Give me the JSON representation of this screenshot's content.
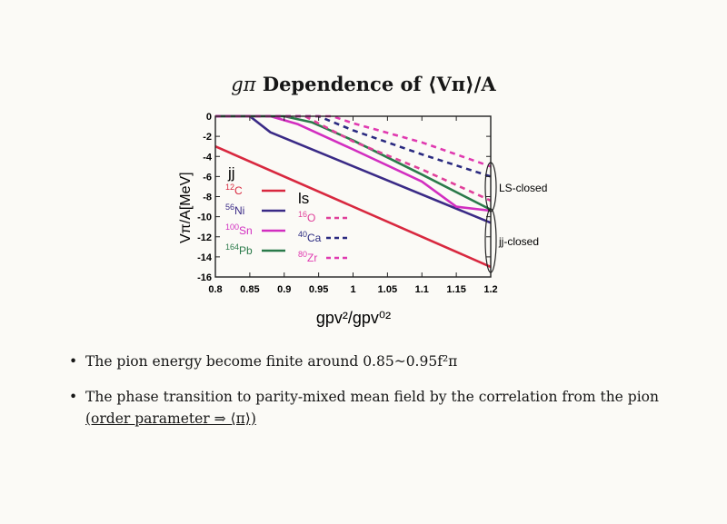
{
  "slide": {
    "title_symbol": "gπ",
    "title_text": "Dependence of ⟨Vπ⟩/A",
    "bullets": [
      {
        "marker": "•",
        "text": "The pion energy become finite around 0.85~0.95f²π"
      },
      {
        "marker": "•",
        "text_main": "The phase transition to parity-mixed mean field by the correlation from the pion ",
        "text_under": "(order parameter ⇒ ⟨π⟩)"
      }
    ]
  },
  "chart_data": {
    "type": "line",
    "xlabel": "gpv²/gpv⁰²",
    "ylabel": "Vπ/A[MeV]",
    "xlim": [
      0.8,
      1.2
    ],
    "ylim": [
      -16,
      0
    ],
    "x_ticks": [
      "0.8",
      "0.85",
      "0.9",
      "0.95",
      "1",
      "1.05",
      "1.1",
      "1.15",
      "1.2"
    ],
    "y_ticks": [
      "0",
      "-2",
      "-4",
      "-6",
      "-8",
      "-10",
      "-12",
      "-14",
      "-16"
    ],
    "legend_groups": [
      {
        "label": "jj",
        "entries": [
          "12C",
          "56Ni",
          "100Sn",
          "164Pb"
        ]
      },
      {
        "label": "ls",
        "entries": [
          "16O",
          "40Ca",
          "80Zr"
        ]
      }
    ],
    "annotations": [
      "LS-closed",
      "jj-closed"
    ],
    "colors": {
      "C12": "#d8283f",
      "Ni56": "#3a2a86",
      "Sn100": "#d22ec0",
      "Pb164": "#2a7a4a",
      "O16": "#e0409a",
      "Ca40": "#2a2a80",
      "Zr80": "#e03ab0"
    },
    "series": [
      {
        "name": "12C",
        "group": "jj",
        "dashed": false,
        "color": "#d8283f",
        "x": [
          0.8,
          1.2
        ],
        "y": [
          -3.0,
          -15.0
        ]
      },
      {
        "name": "56Ni",
        "group": "jj",
        "dashed": false,
        "color": "#3a2a86",
        "x": [
          0.8,
          0.85,
          0.88,
          1.2
        ],
        "y": [
          0,
          0,
          -1.6,
          -10.6
        ]
      },
      {
        "name": "100Sn",
        "group": "jj",
        "dashed": false,
        "color": "#d22ec0",
        "x": [
          0.8,
          0.88,
          0.92,
          1.0,
          1.1,
          1.15,
          1.2
        ],
        "y": [
          0,
          0,
          -0.8,
          -3.3,
          -6.5,
          -9.0,
          -9.4
        ]
      },
      {
        "name": "164Pb",
        "group": "jj",
        "dashed": false,
        "color": "#2a7a4a",
        "x": [
          0.8,
          0.9,
          0.94,
          1.0,
          1.1,
          1.2
        ],
        "y": [
          0,
          0,
          -0.6,
          -2.4,
          -5.8,
          -9.3
        ]
      },
      {
        "name": "16O",
        "group": "ls",
        "dashed": true,
        "color": "#e0409a",
        "x": [
          0.8,
          0.93,
          1.0,
          1.1,
          1.2
        ],
        "y": [
          0,
          0,
          -2.5,
          -5.3,
          -8.4
        ]
      },
      {
        "name": "40Ca",
        "group": "ls",
        "dashed": true,
        "color": "#2a2a80",
        "x": [
          0.8,
          0.95,
          1.0,
          1.1,
          1.2
        ],
        "y": [
          0,
          0,
          -1.4,
          -3.8,
          -6.0
        ]
      },
      {
        "name": "80Zr",
        "group": "ls",
        "dashed": true,
        "color": "#e03ab0",
        "x": [
          0.8,
          0.97,
          1.0,
          1.1,
          1.2
        ],
        "y": [
          0,
          0,
          -0.7,
          -2.6,
          -5.0
        ]
      }
    ]
  }
}
